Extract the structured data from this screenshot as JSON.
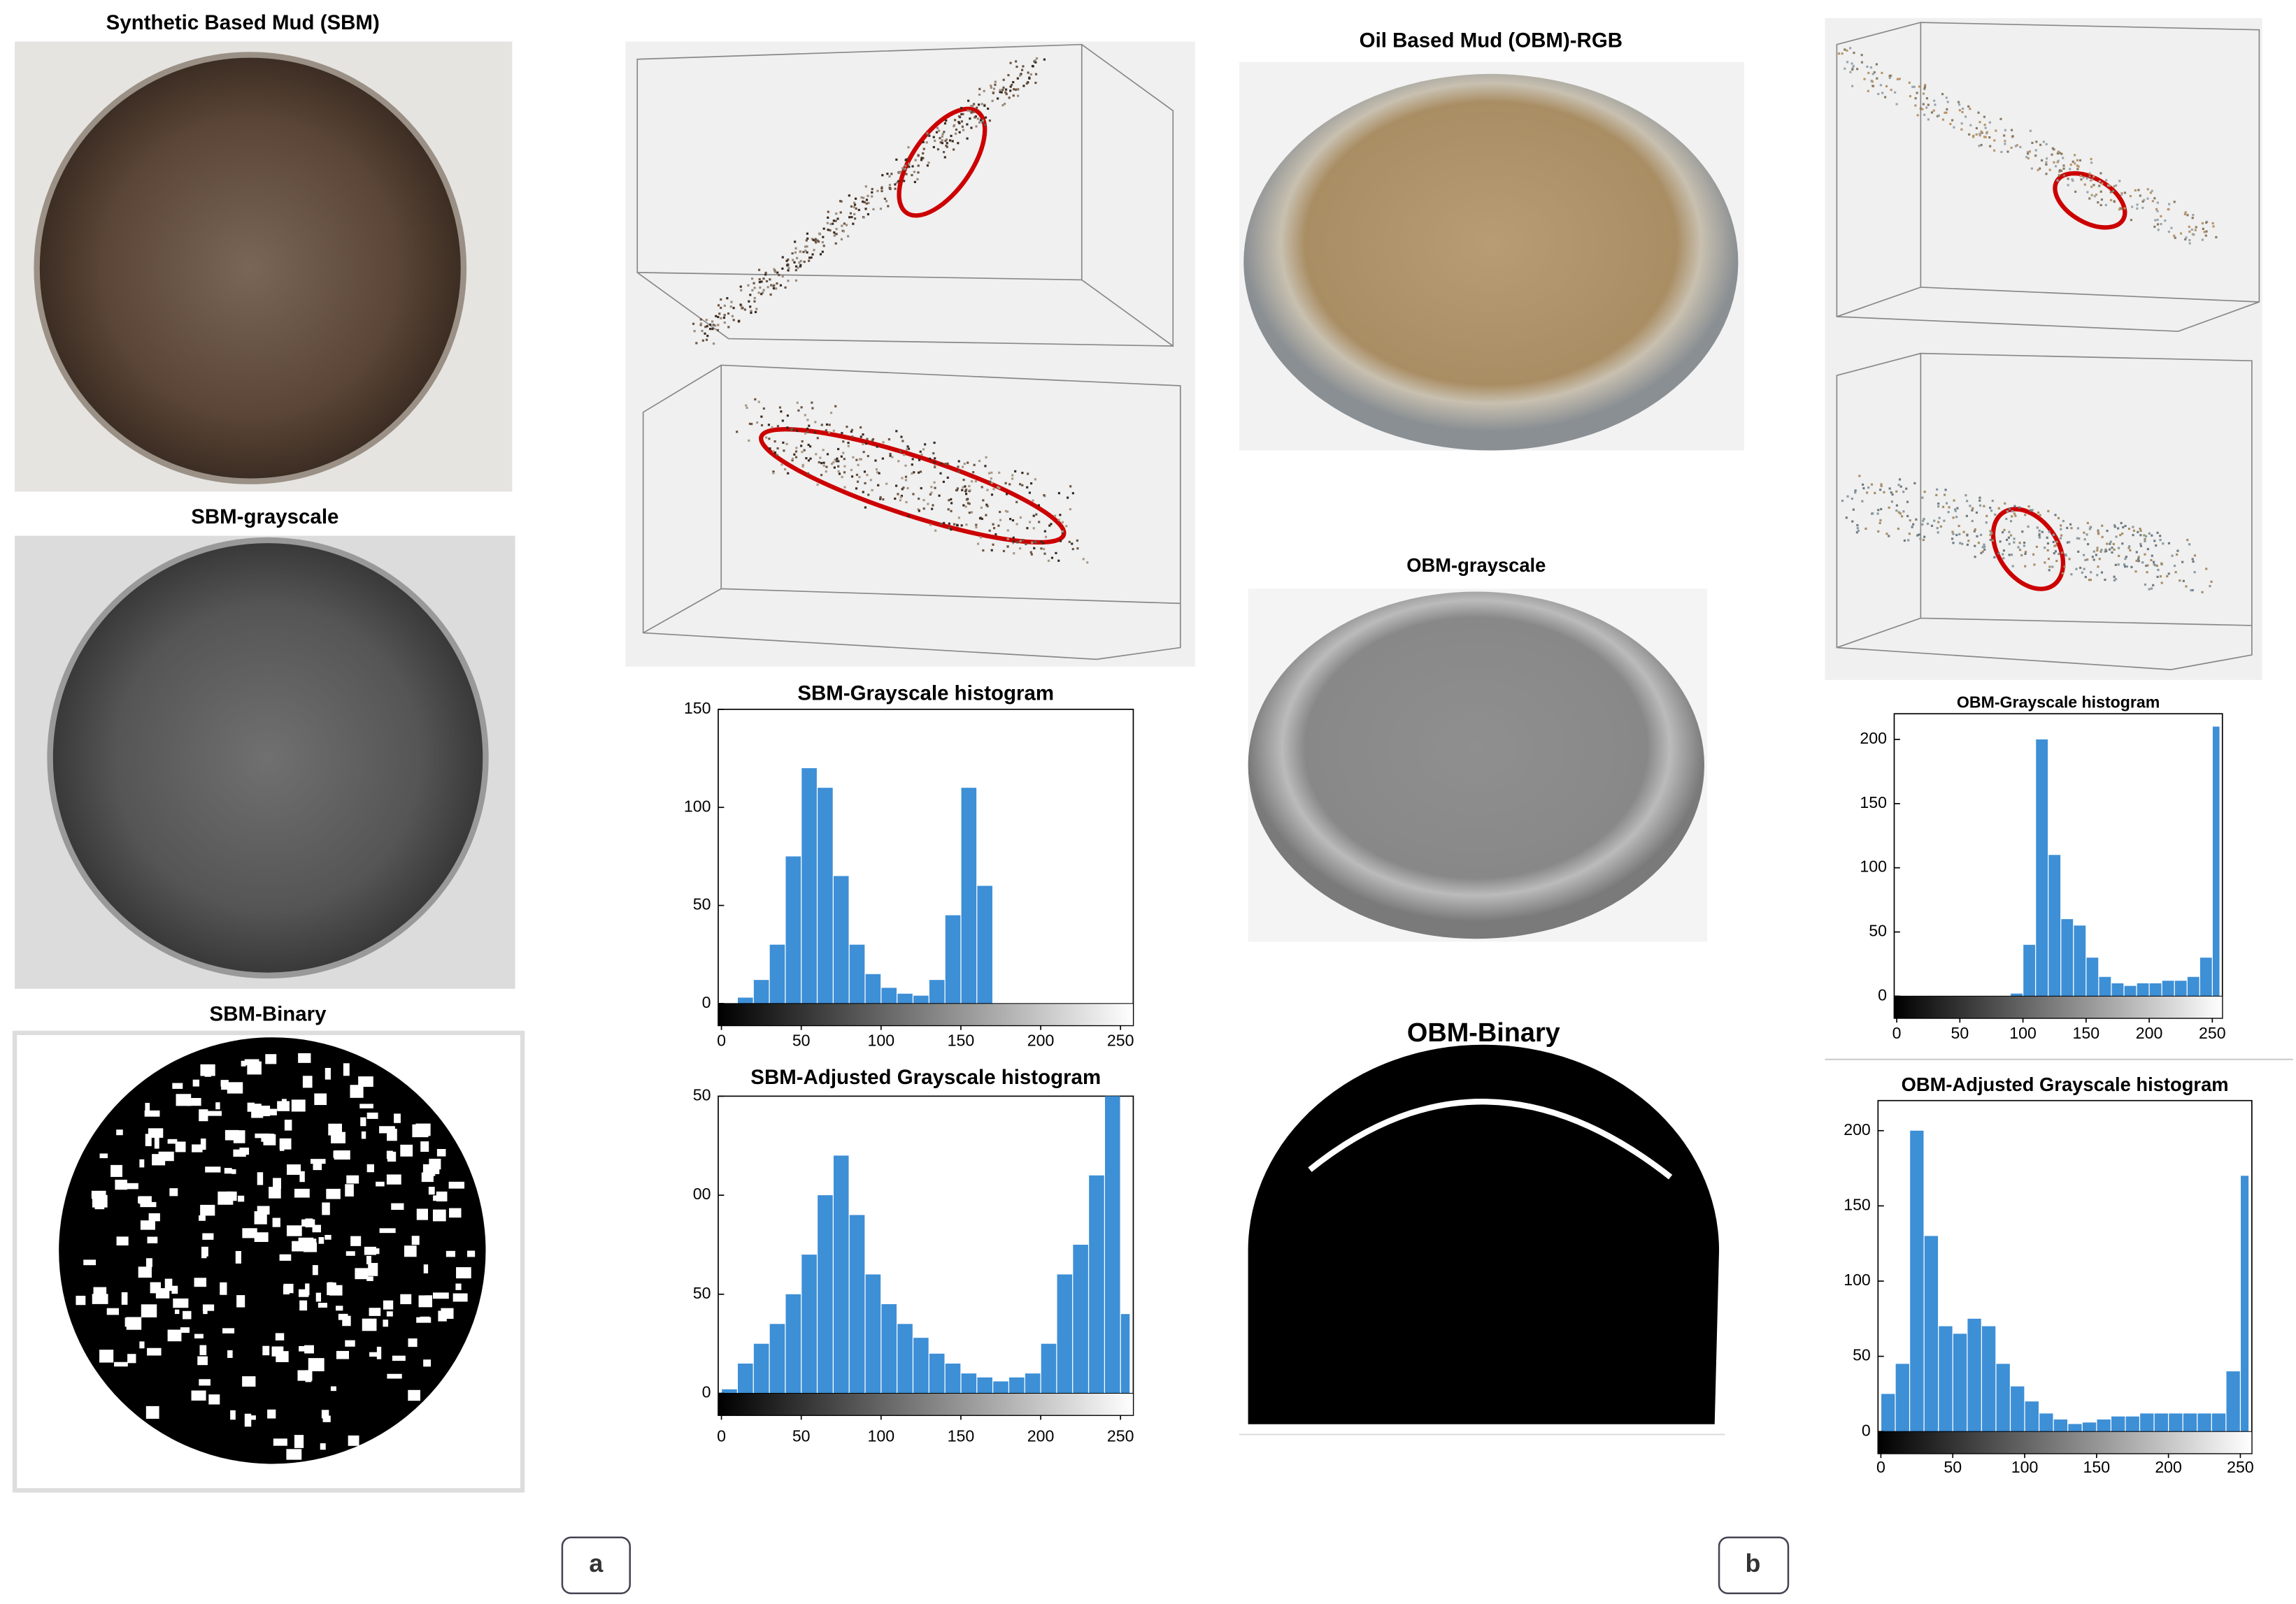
{
  "labels": {
    "sbm_rgb": "Synthetic Based Mud (SBM)",
    "sbm_gray": "SBM-grayscale",
    "sbm_binary": "SBM-Binary",
    "obm_rgb": "Oil Based Mud (OBM)-RGB",
    "obm_gray": "OBM-grayscale",
    "obm_binary": "OBM-Binary",
    "panel_a": "a",
    "panel_b": "b"
  },
  "chart_data": [
    {
      "type": "histogram",
      "title": "SBM-Grayscale histogram",
      "color": "#3d8fd6",
      "bins": [
        0,
        10,
        20,
        30,
        40,
        50,
        60,
        70,
        80,
        90,
        100,
        110,
        120,
        130,
        140,
        150,
        160,
        170,
        180,
        190,
        200,
        210,
        220,
        230,
        240,
        250,
        256
      ],
      "counts": [
        0,
        3,
        12,
        30,
        75,
        120,
        110,
        65,
        30,
        15,
        8,
        5,
        4,
        12,
        45,
        110,
        60,
        0,
        0,
        0,
        0,
        0,
        0,
        0,
        0,
        0
      ],
      "xlim": [
        -2,
        258
      ],
      "ylim": [
        0,
        150
      ],
      "xticks": [
        0,
        50,
        100,
        150,
        200,
        250
      ],
      "yticks": [
        0,
        50,
        100,
        150
      ]
    },
    {
      "type": "histogram",
      "title": "SBM-Adjusted Grayscale histogram",
      "color": "#3d8fd6",
      "bins": [
        0,
        10,
        20,
        30,
        40,
        50,
        60,
        70,
        80,
        90,
        100,
        110,
        120,
        130,
        140,
        150,
        160,
        170,
        180,
        190,
        200,
        210,
        220,
        230,
        240,
        250,
        256
      ],
      "counts": [
        2,
        15,
        25,
        35,
        50,
        70,
        100,
        120,
        90,
        60,
        45,
        35,
        28,
        20,
        15,
        10,
        8,
        6,
        8,
        10,
        25,
        60,
        75,
        110,
        150,
        40
      ],
      "xlim": [
        -2,
        258
      ],
      "ylim": [
        0,
        150
      ],
      "xticks": [
        0,
        50,
        100,
        150,
        200,
        250
      ],
      "yticks": [
        0,
        50,
        {
          "value": 100,
          "label": "00"
        },
        {
          "value": 150,
          "label": "50"
        }
      ]
    },
    {
      "type": "histogram",
      "title": "OBM-Grayscale histogram",
      "color": "#3d8fd6",
      "bins": [
        0,
        10,
        20,
        30,
        40,
        50,
        60,
        70,
        80,
        90,
        100,
        110,
        120,
        130,
        140,
        150,
        160,
        170,
        180,
        190,
        200,
        210,
        220,
        230,
        240,
        250,
        256
      ],
      "counts": [
        0,
        0,
        0,
        0,
        0,
        0,
        0,
        0,
        0,
        2,
        40,
        200,
        110,
        60,
        55,
        30,
        15,
        10,
        8,
        10,
        10,
        12,
        12,
        15,
        30,
        210
      ],
      "xlim": [
        -2,
        258
      ],
      "ylim": [
        0,
        220
      ],
      "xticks": [
        0,
        50,
        100,
        150,
        200,
        250
      ],
      "yticks": [
        0,
        50,
        100,
        150,
        200
      ]
    },
    {
      "type": "histogram",
      "title": "OBM-Adjusted Grayscale histogram",
      "color": "#3d8fd6",
      "bins": [
        0,
        10,
        20,
        30,
        40,
        50,
        60,
        70,
        80,
        90,
        100,
        110,
        120,
        130,
        140,
        150,
        160,
        170,
        180,
        190,
        200,
        210,
        220,
        230,
        240,
        250,
        256
      ],
      "counts": [
        25,
        45,
        200,
        130,
        70,
        65,
        75,
        70,
        45,
        30,
        20,
        12,
        8,
        5,
        6,
        8,
        10,
        10,
        12,
        12,
        12,
        12,
        12,
        12,
        40,
        170
      ],
      "xlim": [
        -2,
        258
      ],
      "ylim": [
        0,
        220
      ],
      "xticks": [
        0,
        50,
        100,
        150,
        200,
        250
      ],
      "yticks": [
        0,
        50,
        100,
        150,
        200
      ]
    }
  ]
}
